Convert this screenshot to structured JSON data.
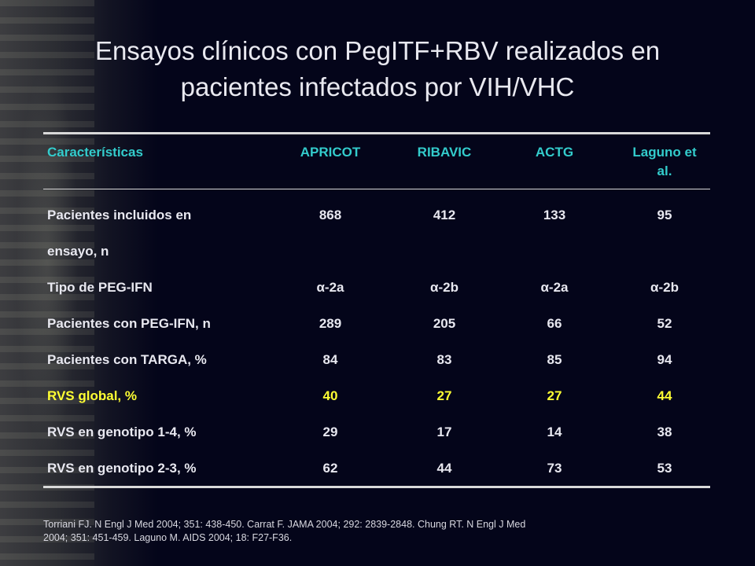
{
  "slide": {
    "title_line1": "Ensayos clínicos con PegITF+RBV realizados en",
    "title_line2": "pacientes infectados por VIH/VHC"
  },
  "table": {
    "headers": {
      "characteristic": "Características",
      "col1": "APRICOT",
      "col2": "RIBAVIC",
      "col3": "ACTG",
      "col4_line1": "Laguno et",
      "col4_line2": "al."
    },
    "rows": [
      {
        "label": "Pacientes incluidos en",
        "label_cont": "ensayo, n",
        "values": [
          "868",
          "412",
          "133",
          "95"
        ]
      },
      {
        "label": "Tipo de PEG-IFN",
        "values": [
          "α-2a",
          "α-2b",
          "α-2a",
          "α-2b"
        ]
      },
      {
        "label": "Pacientes con PEG-IFN, n",
        "values": [
          "289",
          "205",
          "66",
          "52"
        ]
      },
      {
        "label": "Pacientes con TARGA, %",
        "values": [
          "84",
          "83",
          "85",
          "94"
        ]
      },
      {
        "label": "RVS global, %",
        "values": [
          "40",
          "27",
          "27",
          "44"
        ],
        "highlight": true
      },
      {
        "label": "RVS en genotipo 1-4, %",
        "values": [
          "29",
          "17",
          "14",
          "38"
        ]
      },
      {
        "label": "RVS en genotipo 2-3, %",
        "values": [
          "62",
          "44",
          "73",
          "53"
        ]
      }
    ]
  },
  "footer": {
    "line1": "Torriani FJ. N Engl J Med 2004; 351: 438-450. Carrat F. JAMA 2004; 292: 2839-2848. Chung RT. N Engl J Med",
    "line2": "2004; 351: 451-459. Laguno M. AIDS 2004; 18: F27-F36."
  },
  "colors": {
    "background": "#04051a",
    "header_text": "#33cccc",
    "highlight_row": "#ffff33",
    "body_text": "#e8e8f0"
  }
}
